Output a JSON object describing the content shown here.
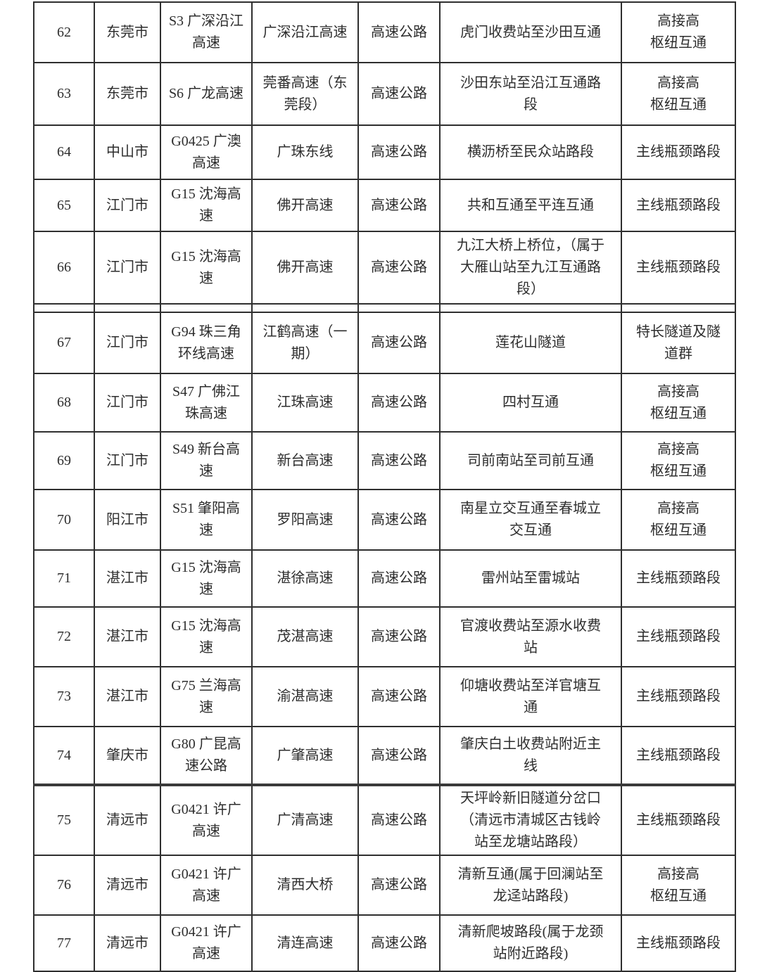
{
  "table": {
    "rows": [
      {
        "no": "62",
        "city": "东莞市",
        "route_code": "S3 广深沿江高速",
        "road_name": "广深沿江高速",
        "road_type": "高速公路",
        "section": "虎门收费站至沙田互通",
        "category": "高接高\n枢纽互通"
      },
      {
        "no": "63",
        "city": "东莞市",
        "route_code": "S6 广龙高速",
        "road_name": "莞番高速（东\n莞段）",
        "road_type": "高速公路",
        "section": "沙田东站至沿江互通路\n段",
        "category": "高接高\n枢纽互通"
      },
      {
        "no": "64",
        "city": "中山市",
        "route_code": "G0425 广澳\n高速",
        "road_name": "广珠东线",
        "road_type": "高速公路",
        "section": "横沥桥至民众站路段",
        "category": "主线瓶颈路段"
      },
      {
        "no": "65",
        "city": "江门市",
        "route_code": "G15 沈海高\n速",
        "road_name": "佛开高速",
        "road_type": "高速公路",
        "section": "共和互通至平连互通",
        "category": "主线瓶颈路段"
      },
      {
        "no": "66",
        "city": "江门市",
        "route_code": "G15 沈海高\n速",
        "road_name": "佛开高速",
        "road_type": "高速公路",
        "section": "九江大桥上桥位，（属于\n大雁山站至九江互通路\n段）",
        "category": "主线瓶颈路段"
      },
      {
        "no": "67",
        "city": "江门市",
        "route_code": "G94 珠三角\n环线高速",
        "road_name": "江鹤高速（一\n期）",
        "road_type": "高速公路",
        "section": "莲花山隧道",
        "category": "特长隧道及隧\n道群"
      },
      {
        "no": "68",
        "city": "江门市",
        "route_code": "S47 广佛江\n珠高速",
        "road_name": "江珠高速",
        "road_type": "高速公路",
        "section": "四村互通",
        "category": "高接高\n枢纽互通"
      },
      {
        "no": "69",
        "city": "江门市",
        "route_code": "S49 新台高\n速",
        "road_name": "新台高速",
        "road_type": "高速公路",
        "section": "司前南站至司前互通",
        "category": "高接高\n枢纽互通"
      },
      {
        "no": "70",
        "city": "阳江市",
        "route_code": "S51 肇阳高\n速",
        "road_name": "罗阳高速",
        "road_type": "高速公路",
        "section": "南星立交互通至春城立\n交互通",
        "category": "高接高\n枢纽互通"
      },
      {
        "no": "71",
        "city": "湛江市",
        "route_code": "G15 沈海高\n速",
        "road_name": "湛徐高速",
        "road_type": "高速公路",
        "section": "雷州站至雷城站",
        "category": "主线瓶颈路段"
      },
      {
        "no": "72",
        "city": "湛江市",
        "route_code": "G15 沈海高\n速",
        "road_name": "茂湛高速",
        "road_type": "高速公路",
        "section": "官渡收费站至源水收费\n站",
        "category": "主线瓶颈路段"
      },
      {
        "no": "73",
        "city": "湛江市",
        "route_code": "G75 兰海高\n速",
        "road_name": "渝湛高速",
        "road_type": "高速公路",
        "section": "仰塘收费站至洋官塘互\n通",
        "category": "主线瓶颈路段"
      },
      {
        "no": "74",
        "city": "肇庆市",
        "route_code": "G80 广昆高\n速公路",
        "road_name": "广肇高速",
        "road_type": "高速公路",
        "section": "肇庆白土收费站附近主\n线",
        "category": "主线瓶颈路段"
      },
      {
        "no": "75",
        "city": "清远市",
        "route_code": "G0421 许广\n高速",
        "road_name": "广清高速",
        "road_type": "高速公路",
        "section": "天坪岭新旧隧道分岔口\n（清远市清城区古钱岭\n站至龙塘站路段）",
        "category": "主线瓶颈路段"
      },
      {
        "no": "76",
        "city": "清远市",
        "route_code": "G0421 许广\n高速",
        "road_name": "清西大桥",
        "road_type": "高速公路",
        "section": "清新互通(属于回澜站至\n龙迳站路段)",
        "category": "高接高\n枢纽互通"
      },
      {
        "no": "77",
        "city": "清远市",
        "route_code": "G0421 许广\n高速",
        "road_name": "清连高速",
        "road_type": "高速公路",
        "section": "清新爬坡路段(属于龙颈\n站附近路段)",
        "category": "主线瓶颈路段"
      }
    ]
  }
}
